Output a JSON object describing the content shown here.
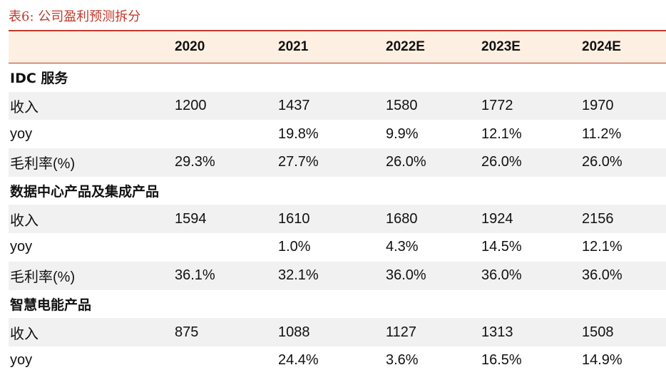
{
  "caption": "表6:  公司盈利预测拆分",
  "header": [
    "",
    "2020",
    "2021",
    "2022E",
    "2023E",
    "2024E"
  ],
  "rows": [
    {
      "kind": "section",
      "label": "IDC 服务",
      "values": [
        "",
        "",
        "",
        "",
        ""
      ]
    },
    {
      "kind": "data",
      "label": "收入",
      "values": [
        "1200",
        "1437",
        "1580",
        "1772",
        "1970"
      ]
    },
    {
      "kind": "data",
      "label": "yoy",
      "values": [
        "",
        "19.8%",
        "9.9%",
        "12.1%",
        "11.2%"
      ]
    },
    {
      "kind": "data",
      "label": "毛利率(%)",
      "values": [
        "29.3%",
        "27.7%",
        "26.0%",
        "26.0%",
        "26.0%"
      ]
    },
    {
      "kind": "section",
      "label": "数据中心产品及集成产品",
      "values": [
        "",
        "",
        "",
        "",
        ""
      ]
    },
    {
      "kind": "data",
      "label": "收入",
      "values": [
        "1594",
        "1610",
        "1680",
        "1924",
        "2156"
      ]
    },
    {
      "kind": "data",
      "label": "yoy",
      "values": [
        "",
        "1.0%",
        "4.3%",
        "14.5%",
        "12.1%"
      ]
    },
    {
      "kind": "data",
      "label": "毛利率(%)",
      "values": [
        "36.1%",
        "32.1%",
        "36.0%",
        "36.0%",
        "36.0%"
      ]
    },
    {
      "kind": "section",
      "label": "智慧电能产品",
      "values": [
        "",
        "",
        "",
        "",
        ""
      ]
    },
    {
      "kind": "data",
      "label": "收入",
      "values": [
        "875",
        "1088",
        "1127",
        "1313",
        "1508"
      ]
    },
    {
      "kind": "data",
      "label": "yoy",
      "values": [
        "",
        "24.4%",
        "3.6%",
        "16.5%",
        "14.9%"
      ]
    }
  ],
  "colors": {
    "accent": "#c0392b",
    "header_bg": "#fdf0e2",
    "shade": "#f1f1f1"
  }
}
